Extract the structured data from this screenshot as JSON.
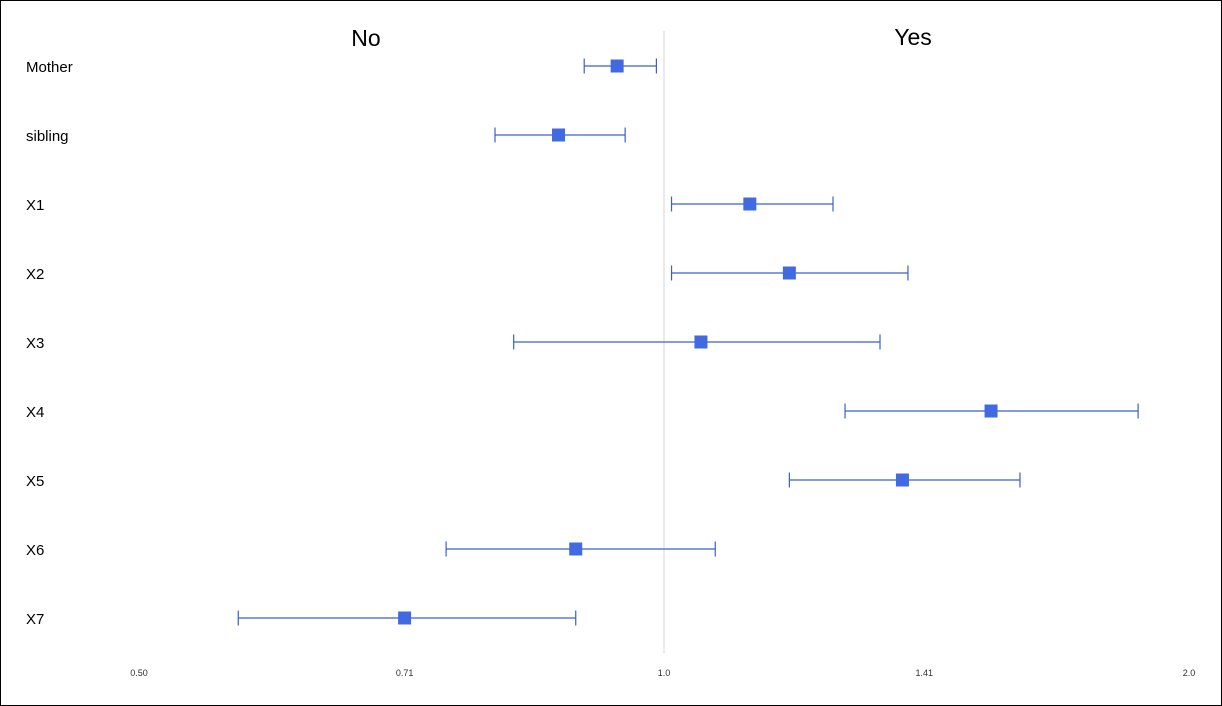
{
  "chart_data": {
    "type": "forest",
    "title": "",
    "x_scale": "log2",
    "xlim": [
      0.5,
      2.0
    ],
    "reference_line": 1.0,
    "group_headers": [
      {
        "label": "No",
        "side": "left"
      },
      {
        "label": "Yes",
        "side": "right"
      }
    ],
    "x_ticks": [
      0.5,
      0.71,
      1.0,
      1.41,
      2.0
    ],
    "x_tick_labels": [
      "0.50",
      "0.71",
      "1.0",
      "1.41",
      "2.0"
    ],
    "rows": [
      {
        "label": "Mother",
        "estimate": 0.94,
        "ci_low": 0.9,
        "ci_high": 0.99
      },
      {
        "label": "sibling",
        "estimate": 0.87,
        "ci_low": 0.8,
        "ci_high": 0.95
      },
      {
        "label": "X1",
        "estimate": 1.12,
        "ci_low": 1.01,
        "ci_high": 1.25
      },
      {
        "label": "X2",
        "estimate": 1.18,
        "ci_low": 1.01,
        "ci_high": 1.38
      },
      {
        "label": "X3",
        "estimate": 1.05,
        "ci_low": 0.82,
        "ci_high": 1.33
      },
      {
        "label": "X4",
        "estimate": 1.54,
        "ci_low": 1.27,
        "ci_high": 1.87
      },
      {
        "label": "X5",
        "estimate": 1.37,
        "ci_low": 1.18,
        "ci_high": 1.6
      },
      {
        "label": "X6",
        "estimate": 0.89,
        "ci_low": 0.75,
        "ci_high": 1.07
      },
      {
        "label": "X7",
        "estimate": 0.71,
        "ci_low": 0.57,
        "ci_high": 0.89
      }
    ],
    "colors": {
      "marker": "#4169e1",
      "ci_line": "#3a5fcd",
      "reference_line": "#d6d6d6",
      "text": "#000000",
      "tick_text": "#303030",
      "background": "#ffffff",
      "border": "#000000"
    }
  }
}
